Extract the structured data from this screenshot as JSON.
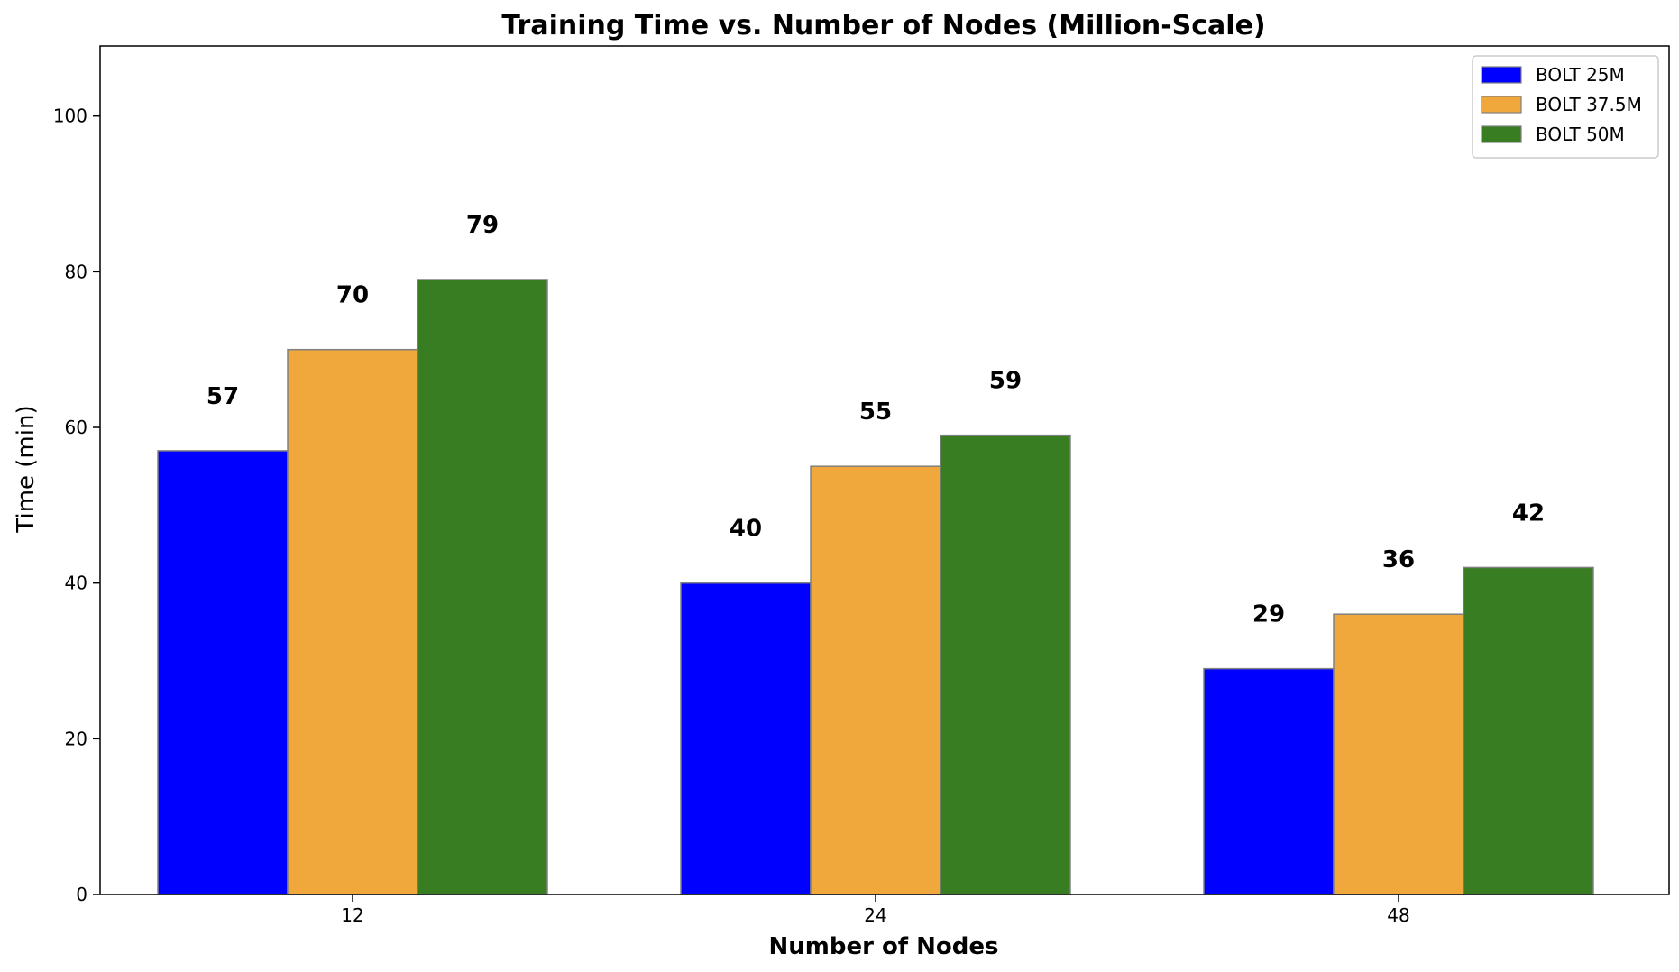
{
  "chart_data": {
    "type": "bar",
    "title": "Training Time vs. Number of Nodes (Million-Scale)",
    "xlabel": "Number of Nodes",
    "ylabel": "Time (min)",
    "categories": [
      "12",
      "24",
      "48"
    ],
    "series": [
      {
        "name": "BOLT 25M",
        "values": [
          57,
          40,
          29
        ],
        "color": "#0000ff"
      },
      {
        "name": "BOLT 37.5M",
        "values": [
          70,
          55,
          36
        ],
        "color": "#f0a83c"
      },
      {
        "name": "BOLT 50M",
        "values": [
          79,
          59,
          42
        ],
        "color": "#387d22"
      }
    ],
    "ylim": [
      0,
      109
    ],
    "yticks": [
      0,
      20,
      40,
      60,
      80,
      100
    ],
    "grid": false,
    "legend": "top-right",
    "bar_edge_color": "#808080"
  }
}
